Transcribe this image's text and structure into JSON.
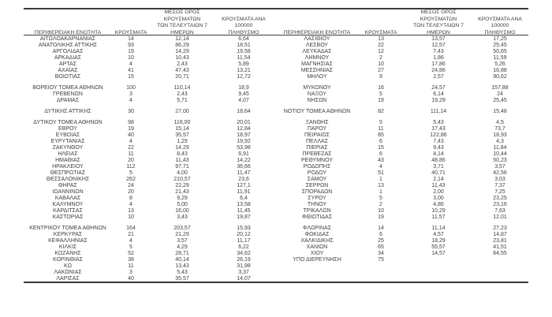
{
  "colors": {
    "text": "#3f3f3f",
    "line": "#3a3a3a",
    "background": "#ffffff"
  },
  "header": {
    "region": "ΠΕΡΙΦΕΡΕΙΑΚΗ ΕΝΟΤΗΤΑ",
    "cases": "ΚΡΟΥΣΜΑΤΑ",
    "avg_line1": "ΜΕΣΟΣ ΟΡΟΣ ΚΡΟΥΣΜΑΤΩΝ",
    "avg_line2": "ΤΩΝ ΤΕΛΕΥΤΑΙΩΝ 7",
    "avg_line3": "ΗΜΕΡΩΝ",
    "per100k_line1": "ΚΡΟΥΣΜΑΤΑ ΑΝΑ 100000",
    "per100k_line2": "ΠΛΗΘΥΣΜΟ"
  },
  "left_table": {
    "groups": [
      [
        [
          "ΑΙΤΩΛΟΑΚΑΡΝΑΝΙΑΣ",
          "14",
          "12,14",
          "6,64"
        ],
        [
          "ΑΝΑΤΟΛΙΚΗΣ ΑΤΤΙΚΗΣ",
          "93",
          "86,29",
          "18,51"
        ],
        [
          "ΑΡΓΟΛΙΔΑΣ",
          "19",
          "14,29",
          "19,58"
        ],
        [
          "ΑΡΚΑΔΙΑΣ",
          "10",
          "10,43",
          "11,54"
        ],
        [
          "ΑΡΤΑΣ",
          "4",
          "2,43",
          "5,89"
        ],
        [
          "ΑΧΑΪΑΣ",
          "41",
          "47,43",
          "13,21"
        ],
        [
          "ΒΟΙΩΤΙΑΣ",
          "15",
          "20,71",
          "12,72"
        ]
      ],
      [
        [
          "ΒΟΡΕΙΟΥ ΤΟΜΕΑ ΑΘΗΝΩΝ",
          "100",
          "110,14",
          "18,9"
        ],
        [
          "ΓΡΕΒΕΝΩΝ",
          "3",
          "2,43",
          "9,45"
        ],
        [
          "ΔΡΑΜΑΣ",
          "4",
          "5,71",
          "4,07"
        ]
      ],
      [
        [
          "ΔΥΤΙΚΗΣ ΑΤΤΙΚΗΣ",
          "30",
          "27,00",
          "18,64"
        ]
      ],
      [
        [
          "ΔΥΤΙΚΟΥ ΤΟΜΕΑ ΑΘΗΝΩΝ",
          "98",
          "116,00",
          "20,01"
        ],
        [
          "ΕΒΡΟΥ",
          "19",
          "15,14",
          "12,84"
        ],
        [
          "ΕΥΒΟΙΑΣ",
          "40",
          "35,57",
          "18,97"
        ],
        [
          "ΕΥΡΥΤΑΝΙΑΣ",
          "4",
          "1,29",
          "19,92"
        ],
        [
          "ΖΑΚΥΝΘΟΥ",
          "22",
          "14,29",
          "53,98"
        ],
        [
          "ΗΛΕΙΑΣ",
          "11",
          "8,43",
          "6,91"
        ],
        [
          "ΗΜΑΘΙΑΣ",
          "20",
          "11,43",
          "14,22"
        ],
        [
          "ΗΡΑΚΛΕΙΟΥ",
          "112",
          "97,71",
          "36,66"
        ],
        [
          "ΘΕΣΠΡΩΤΙΑΣ",
          "5",
          "4,00",
          "11,47"
        ],
        [
          "ΘΕΣΣΑΛΟΝΙΚΗΣ",
          "262",
          "210,57",
          "23,6"
        ],
        [
          "ΘΗΡΑΣ",
          "24",
          "22,29",
          "127,1"
        ],
        [
          "ΙΩΑΝΝΙΝΩΝ",
          "20",
          "21,43",
          "11,91"
        ],
        [
          "ΚΑΒΑΛΑΣ",
          "8",
          "9,29",
          "6,4"
        ],
        [
          "ΚΑΛΥΜΝΟΥ",
          "4",
          "5,00",
          "13,58"
        ],
        [
          "ΚΑΡΔΙΤΣΑΣ",
          "13",
          "16,00",
          "11,45"
        ],
        [
          "ΚΑΣΤΟΡΙΑΣ",
          "10",
          "3,43",
          "19,87"
        ]
      ],
      [
        [
          "ΚΕΝΤΡΙΚΟΥ ΤΟΜΕΑ ΑΘΗΝΩΝ",
          "164",
          "203,57",
          "15,93"
        ],
        [
          "ΚΕΡΚΥΡΑΣ",
          "21",
          "21,29",
          "20,12"
        ],
        [
          "ΚΕΦΑΛΛΗΝΙΑΣ",
          "4",
          "3,57",
          "11,17"
        ],
        [
          "ΚΙΛΚΙΣ",
          "5",
          "4,29",
          "6,22"
        ],
        [
          "ΚΟΖΑΝΗΣ",
          "52",
          "28,71",
          "34,62"
        ],
        [
          "ΚΟΡΙΝΘΙΑΣ",
          "38",
          "40,14",
          "26,19"
        ],
        [
          "ΚΩ",
          "11",
          "13,43",
          "31,98"
        ],
        [
          "ΛΑΚΩΝΙΑΣ",
          "3",
          "5,43",
          "3,37"
        ],
        [
          "ΛΑΡΙΣΑΣ",
          "40",
          "35,57",
          "14,07"
        ]
      ]
    ]
  },
  "right_table": {
    "groups": [
      [
        [
          "ΛΑΣΙΘΙΟΥ",
          "13",
          "13,57",
          "17,25"
        ],
        [
          "ΛΕΣΒΟΥ",
          "22",
          "12,57",
          "25,45"
        ],
        [
          "ΛΕΥΚΑΔΑΣ",
          "12",
          "7,43",
          "50,65"
        ],
        [
          "ΛΗΜΝΟΥ",
          "2",
          "1,86",
          "11,59"
        ],
        [
          "ΜΑΓΝΗΣΙΑΣ",
          "10",
          "17,86",
          "5,26"
        ],
        [
          "ΜΕΣΣΗΝΙΑΣ",
          "27",
          "24,86",
          "16,88"
        ],
        [
          "ΜΗΛΟΥ",
          "9",
          "2,57",
          "90,62"
        ]
      ],
      [
        [
          "ΜΥΚΟΝΟΥ",
          "16",
          "24,57",
          "157,88"
        ],
        [
          "ΝΑΞΟΥ",
          "5",
          "6,14",
          "24"
        ],
        [
          "ΝΗΣΩΝ",
          "19",
          "19,29",
          "25,45"
        ]
      ],
      [
        [
          "ΝΟΤΙΟΥ ΤΟΜΕΑ ΑΘΗΝΩΝ",
          "82",
          "111,14",
          "15,48"
        ]
      ],
      [
        [
          "ΞΑΝΘΗΣ",
          "5",
          "5,43",
          "4,5"
        ],
        [
          "ΠΑΡΟΥ",
          "11",
          "17,43",
          "73,7"
        ],
        [
          "ΠΕΙΡΑΙΩΣ",
          "85",
          "122,86",
          "18,93"
        ],
        [
          "ΠΕΛΛΑΣ",
          "6",
          "7,43",
          "4,3"
        ],
        [
          "ΠΙΕΡΙΑΣ",
          "15",
          "9,43",
          "11,84"
        ],
        [
          "ΠΡΕΒΕΖΑΣ",
          "6",
          "4,14",
          "10,44"
        ],
        [
          "ΡΕΘΥΜΝΟΥ",
          "43",
          "48,86",
          "50,23"
        ],
        [
          "ΡΟΔΟΠΗΣ",
          "4",
          "3,71",
          "3,57"
        ],
        [
          "ΡΟΔΟΥ",
          "51",
          "40,71",
          "42,56"
        ],
        [
          "ΣΑΜΟΥ",
          "1",
          "2,14",
          "3,03"
        ],
        [
          "ΣΕΡΡΩΝ",
          "13",
          "11,43",
          "7,37"
        ],
        [
          "ΣΠΟΡΑΔΩΝ",
          "1",
          "2,00",
          "7,25"
        ],
        [
          "ΣΥΡΟΥ",
          "5",
          "3,00",
          "23,25"
        ],
        [
          "ΤΗΝΟΥ",
          "2",
          "4,86",
          "23,16"
        ],
        [
          "ΤΡΙΚΑΛΩΝ",
          "10",
          "10,29",
          "7,63"
        ],
        [
          "ΦΘΙΩΤΙΔΑΣ",
          "19",
          "11,57",
          "12,01"
        ]
      ],
      [
        [
          "ΦΛΩΡΙΝΑΣ",
          "14",
          "11,14",
          "27,23"
        ],
        [
          "ΦΩΚΙΔΑΣ",
          "6",
          "4,57",
          "14,87"
        ],
        [
          "ΧΑΛΚΙΔΙΚΗΣ",
          "25",
          "18,29",
          "23,81"
        ],
        [
          "ΧΑΝΙΩΝ",
          "65",
          "55,57",
          "41,51"
        ],
        [
          "ΧΙΟΥ",
          "34",
          "14,57",
          "64,55"
        ],
        [
          "ΥΠΟ ΔΙΕΡΕΥΝΗΣΗ",
          "75",
          "",
          ""
        ]
      ]
    ]
  }
}
